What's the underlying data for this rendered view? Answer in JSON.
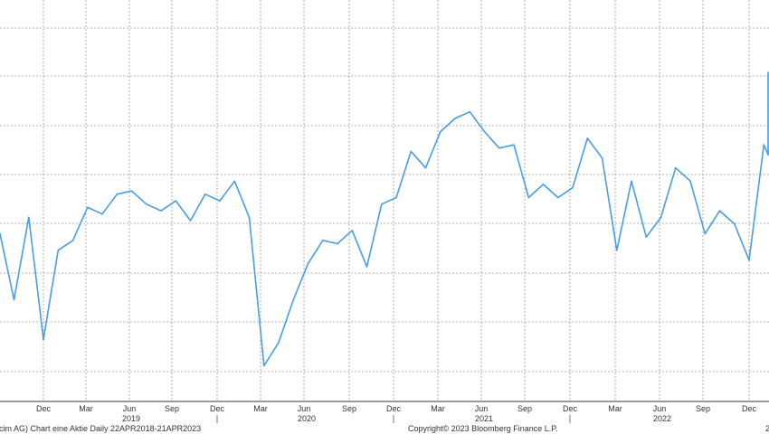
{
  "chart_data": {
    "type": "line",
    "title": "",
    "xlabel": "",
    "ylabel": "",
    "grid": true,
    "range": "22APR2018-21APR2023",
    "month_ticks": [
      "Dec",
      "Mar",
      "Jun",
      "Sep",
      "Dec",
      "Mar",
      "Jun",
      "Sep",
      "Dec",
      "Mar",
      "Jun",
      "Sep",
      "Dec",
      "Mar",
      "Jun",
      "Sep",
      "Dec"
    ],
    "year_labels": [
      "2019",
      "2020",
      "2021",
      "2022"
    ],
    "series": [
      {
        "color": "#4a9de0",
        "x": [
          "2018-09",
          "2018-10",
          "2018-11",
          "2018-12",
          "2019-01",
          "2019-02",
          "2019-03",
          "2019-04",
          "2019-05",
          "2019-06",
          "2019-07",
          "2019-08",
          "2019-09",
          "2019-10",
          "2019-11",
          "2019-12",
          "2020-01",
          "2020-02",
          "2020-03",
          "2020-04",
          "2020-05",
          "2020-06",
          "2020-07",
          "2020-08",
          "2020-09",
          "2020-10",
          "2020-11",
          "2020-12",
          "2021-01",
          "2021-02",
          "2021-03",
          "2021-04",
          "2021-05",
          "2021-06",
          "2021-07",
          "2021-08",
          "2021-09",
          "2021-10",
          "2021-11",
          "2021-12",
          "2022-01",
          "2022-02",
          "2022-03",
          "2022-04",
          "2022-05",
          "2022-06",
          "2022-07",
          "2022-08",
          "2022-09",
          "2022-10",
          "2022-11",
          "2022-12",
          "2023-01",
          "2023-02",
          "2023-03",
          "2023-04"
        ],
        "values": [
          0.61,
          0.41,
          0.66,
          0.29,
          0.56,
          0.59,
          0.69,
          0.67,
          0.73,
          0.74,
          0.7,
          0.68,
          0.71,
          0.65,
          0.73,
          0.71,
          0.77,
          0.66,
          0.21,
          0.28,
          0.41,
          0.52,
          0.59,
          0.58,
          0.62,
          0.51,
          0.7,
          0.72,
          0.86,
          0.81,
          0.92,
          0.96,
          0.98,
          0.92,
          0.87,
          0.88,
          0.72,
          0.76,
          0.72,
          0.75,
          0.9,
          0.84,
          0.56,
          0.77,
          0.6,
          0.66,
          0.81,
          0.77,
          0.61,
          0.68,
          0.64,
          0.53,
          0.88,
          0.85,
          1.0,
          1.1
        ]
      }
    ]
  },
  "footer": {
    "left": "cim AG) Chart eine Aktie  Daily 22APR2018-21APR2023",
    "center": "Copyright© 2023 Bloomberg Finance L.P.",
    "right": "2"
  }
}
